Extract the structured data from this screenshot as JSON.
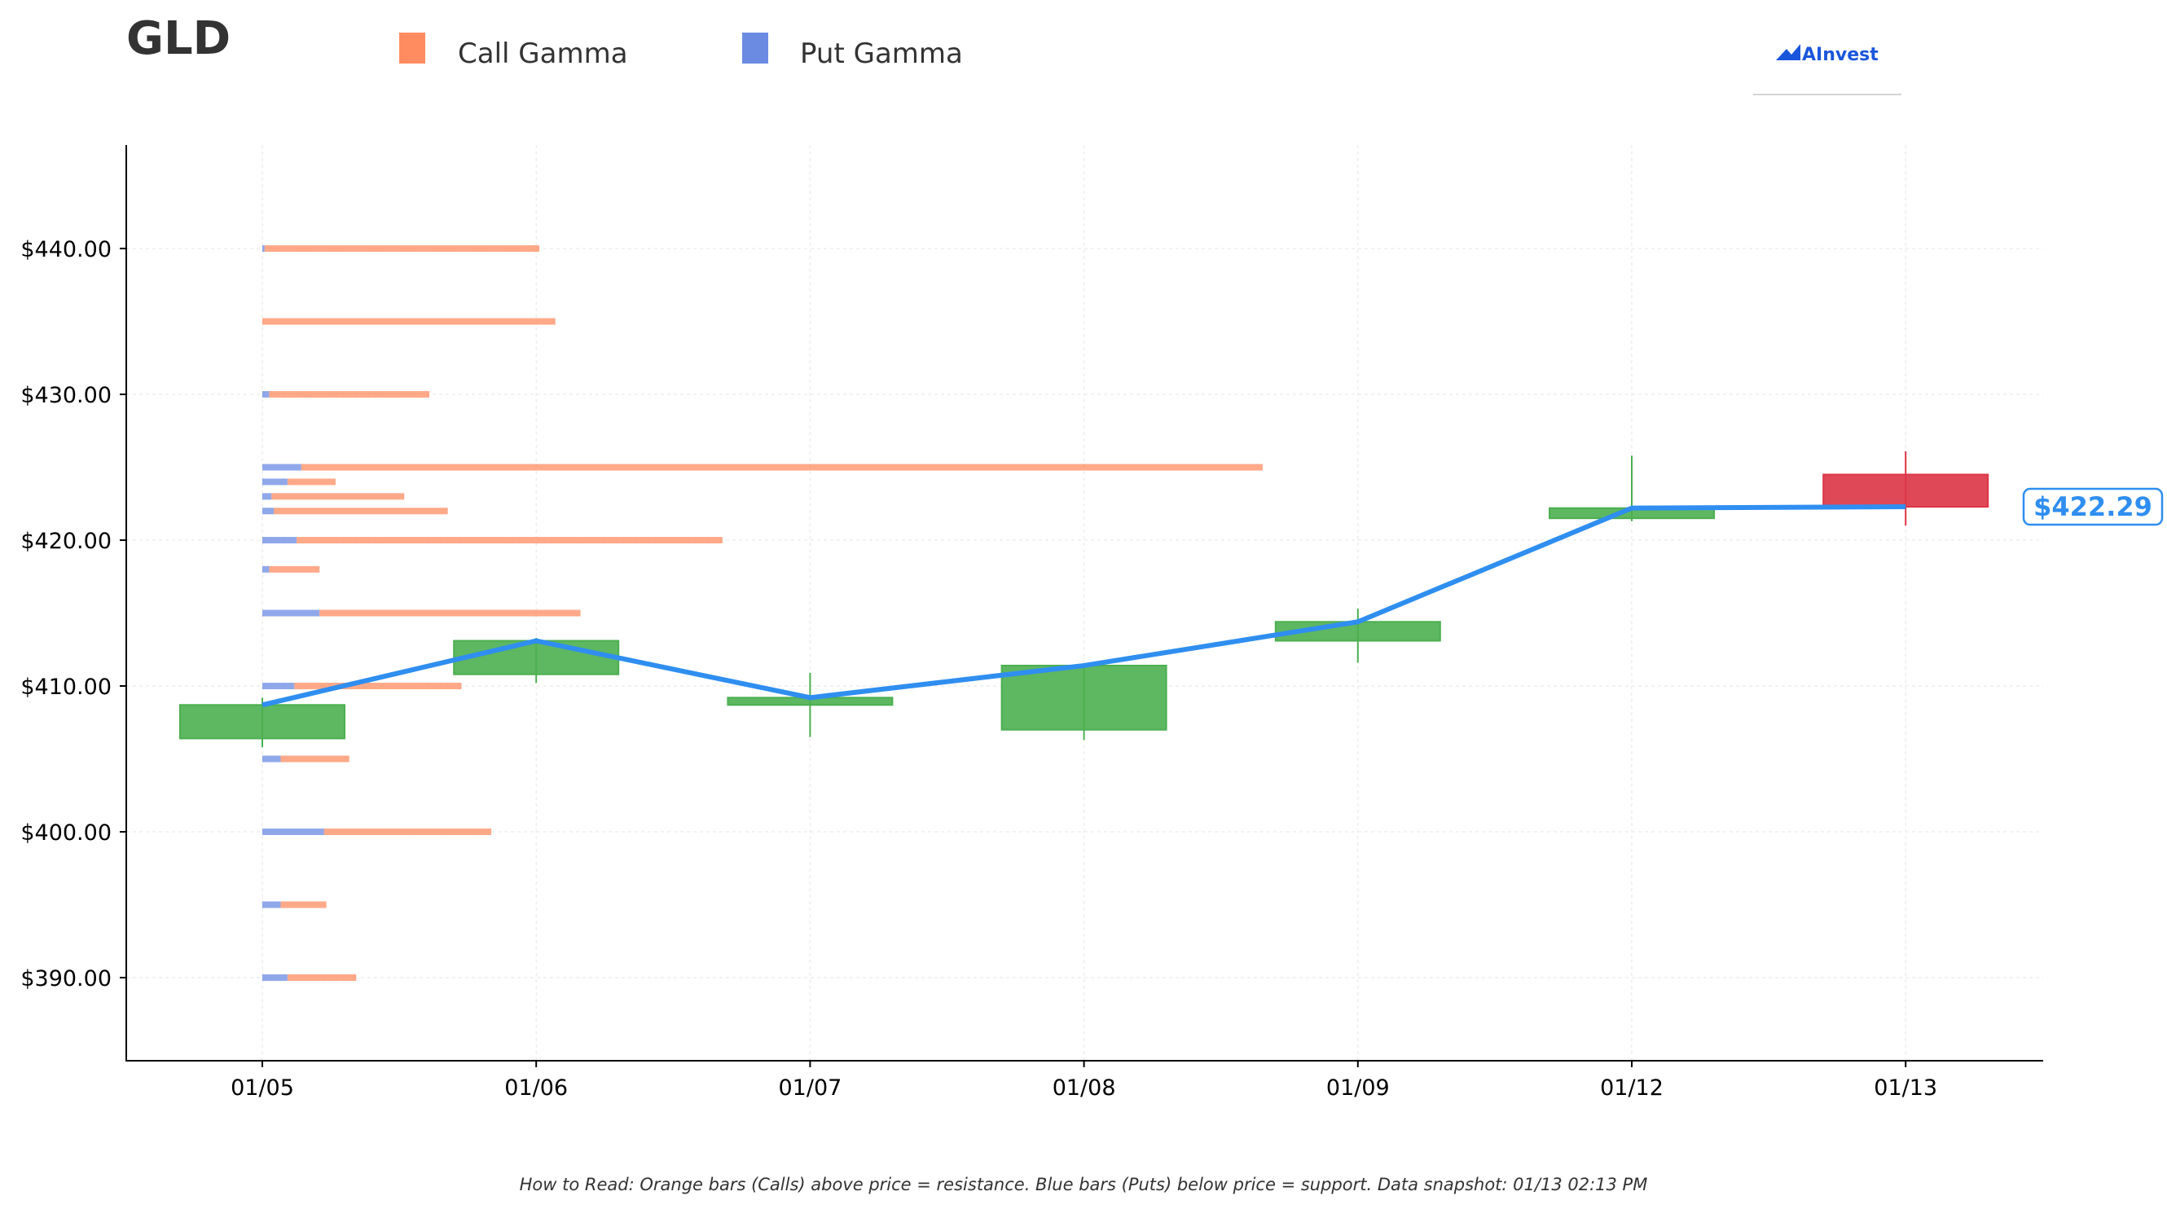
{
  "chart_data": {
    "type": "candlestick",
    "title": "GLD",
    "legend": [
      {
        "label": "Call Gamma",
        "color": "#ff8c61"
      },
      {
        "label": "Put Gamma",
        "color": "#6b8be3"
      }
    ],
    "legend_position": "top",
    "brand": "AInvest",
    "categories": [
      "01/05",
      "01/06",
      "01/07",
      "01/08",
      "01/09",
      "01/12",
      "01/13"
    ],
    "ohlc": [
      {
        "date": "01/05",
        "open": 406.4,
        "high": 409.2,
        "low": 405.8,
        "close": 408.7
      },
      {
        "date": "01/06",
        "open": 410.8,
        "high": 413.3,
        "low": 410.2,
        "close": 413.1
      },
      {
        "date": "01/07",
        "open": 408.7,
        "high": 410.9,
        "low": 406.5,
        "close": 409.2
      },
      {
        "date": "01/08",
        "open": 407.0,
        "high": 411.5,
        "low": 406.3,
        "close": 411.4
      },
      {
        "date": "01/09",
        "open": 413.1,
        "high": 415.3,
        "low": 411.6,
        "close": 414.4
      },
      {
        "date": "01/12",
        "open": 421.5,
        "high": 425.8,
        "low": 421.3,
        "close": 422.2
      },
      {
        "date": "01/13",
        "open": 424.5,
        "high": 426.1,
        "low": 421.0,
        "close": 422.29
      }
    ],
    "close_line": [
      408.7,
      413.1,
      409.2,
      411.4,
      414.4,
      422.2,
      422.29
    ],
    "last_price_label": "$422.29",
    "gamma_levels": [
      {
        "strike": 440,
        "put": 0.05,
        "call": 6.0
      },
      {
        "strike": 435,
        "put": 0.0,
        "call": 6.4
      },
      {
        "strike": 430,
        "put": 0.15,
        "call": 3.5
      },
      {
        "strike": 425,
        "put": 0.85,
        "call": 21.0
      },
      {
        "strike": 424,
        "put": 0.55,
        "call": 1.05
      },
      {
        "strike": 423,
        "put": 0.2,
        "call": 2.9
      },
      {
        "strike": 422,
        "put": 0.25,
        "call": 3.8
      },
      {
        "strike": 420,
        "put": 0.75,
        "call": 9.3
      },
      {
        "strike": 418,
        "put": 0.15,
        "call": 1.1
      },
      {
        "strike": 415,
        "put": 1.25,
        "call": 5.7
      },
      {
        "strike": 410,
        "put": 0.7,
        "call": 3.65
      },
      {
        "strike": 405,
        "put": 0.4,
        "call": 1.5
      },
      {
        "strike": 400,
        "put": 1.35,
        "call": 3.65
      },
      {
        "strike": 395,
        "put": 0.4,
        "call": 1.0
      },
      {
        "strike": 390,
        "put": 0.55,
        "call": 1.5
      }
    ],
    "y_ticks": [
      "$390.00",
      "$400.00",
      "$410.00",
      "$420.00",
      "$430.00",
      "$440.00"
    ],
    "y_tick_values": [
      390,
      400,
      410,
      420,
      430,
      440
    ],
    "ylim": [
      384.3,
      447.1
    ],
    "grid": true,
    "up_color": "#4caf50",
    "down_color": "#dc3545",
    "line_color": "#2f8ef0",
    "footnote": "How to Read: Orange bars (Calls) above price = resistance. Blue bars (Puts) below price = support. Data snapshot: 01/13 02:13 PM"
  }
}
